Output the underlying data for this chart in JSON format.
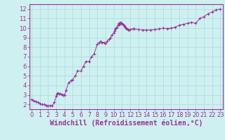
{
  "x": [
    0,
    0.25,
    0.5,
    0.75,
    1,
    1.25,
    1.5,
    1.75,
    2,
    2.25,
    2.5,
    2.75,
    3,
    3.1,
    3.2,
    3.35,
    3.5,
    3.7,
    3.85,
    4,
    4.2,
    4.5,
    4.8,
    5,
    5.3,
    5.6,
    6,
    6.3,
    6.6,
    7,
    7.3,
    7.6,
    8,
    8.2,
    8.4,
    8.6,
    8.8,
    9,
    9.2,
    9.4,
    9.6,
    9.8,
    10,
    10.1,
    10.2,
    10.3,
    10.4,
    10.5,
    10.6,
    10.7,
    10.8,
    10.9,
    11,
    11.1,
    11.2,
    11.3,
    11.4,
    11.5,
    11.6,
    11.7,
    11.8,
    12,
    12.3,
    12.5,
    13,
    13.5,
    14,
    14.5,
    15,
    15.5,
    16,
    16.5,
    17,
    17.5,
    18,
    18.5,
    19,
    19.5,
    20,
    20.5,
    21,
    21.5,
    22,
    22.5,
    23
  ],
  "y": [
    2.5,
    2.4,
    2.3,
    2.2,
    2.1,
    2.0,
    2.0,
    1.9,
    1.85,
    1.85,
    1.9,
    2.2,
    2.9,
    3.1,
    3.2,
    3.15,
    3.1,
    3.05,
    3.0,
    3.0,
    3.5,
    4.3,
    4.5,
    4.6,
    5.0,
    5.5,
    5.5,
    6.0,
    6.5,
    6.5,
    7.0,
    7.3,
    8.3,
    8.5,
    8.6,
    8.5,
    8.5,
    8.4,
    8.6,
    8.8,
    9.0,
    9.3,
    9.5,
    9.7,
    9.9,
    10.0,
    10.1,
    10.3,
    10.5,
    10.4,
    10.6,
    10.5,
    10.5,
    10.4,
    10.3,
    10.2,
    10.1,
    10.0,
    9.9,
    9.85,
    9.8,
    9.85,
    9.9,
    9.9,
    9.85,
    9.8,
    9.8,
    9.8,
    9.85,
    9.9,
    10.0,
    9.95,
    10.0,
    10.1,
    10.3,
    10.4,
    10.5,
    10.6,
    10.5,
    11.0,
    11.2,
    11.5,
    11.7,
    11.9,
    12.0
  ],
  "line_color": "#993399",
  "marker": "+",
  "marker_size": 3,
  "bg_color": "#cff0f0",
  "grid_color": "#b0dede",
  "border_color": "#993399",
  "xlabel": "Windchill (Refroidissement éolien,°C)",
  "xlabel_color": "#993399",
  "xlim": [
    -0.3,
    23.3
  ],
  "ylim": [
    1.5,
    12.5
  ],
  "xticks": [
    0,
    1,
    2,
    3,
    4,
    5,
    6,
    7,
    8,
    9,
    10,
    11,
    12,
    13,
    14,
    15,
    16,
    17,
    18,
    19,
    20,
    21,
    22,
    23
  ],
  "yticks": [
    2,
    3,
    4,
    5,
    6,
    7,
    8,
    9,
    10,
    11,
    12
  ],
  "tick_fontsize": 6,
  "xlabel_fontsize": 7
}
